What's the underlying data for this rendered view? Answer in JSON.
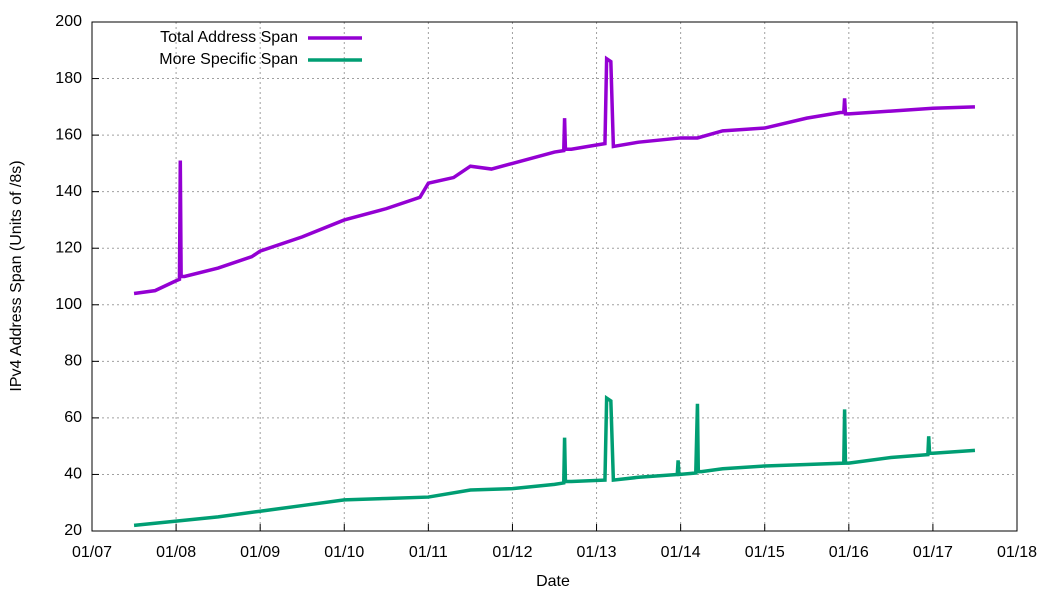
{
  "chart_data": {
    "type": "line",
    "xlabel": "Date",
    "ylabel": "IPv4 Address Span (Units of /8s)",
    "xlim": [
      2007,
      2018
    ],
    "xticks": [
      {
        "value": 2007,
        "label": "01/07"
      },
      {
        "value": 2008,
        "label": "01/08"
      },
      {
        "value": 2009,
        "label": "01/09"
      },
      {
        "value": 2010,
        "label": "01/10"
      },
      {
        "value": 2011,
        "label": "01/11"
      },
      {
        "value": 2012,
        "label": "01/12"
      },
      {
        "value": 2013,
        "label": "01/13"
      },
      {
        "value": 2014,
        "label": "01/14"
      },
      {
        "value": 2015,
        "label": "01/15"
      },
      {
        "value": 2016,
        "label": "01/16"
      },
      {
        "value": 2017,
        "label": "01/17"
      },
      {
        "value": 2018,
        "label": "01/18"
      }
    ],
    "ylim": [
      20,
      200
    ],
    "yticks": [
      20,
      40,
      60,
      80,
      100,
      120,
      140,
      160,
      180,
      200
    ],
    "grid": true,
    "legend": "top-left",
    "series": [
      {
        "name": "Total Address Span",
        "color": "#9400d3",
        "x": [
          2007.5,
          2007.75,
          2008.0,
          2008.04,
          2008.05,
          2008.06,
          2008.1,
          2008.5,
          2008.9,
          2009.0,
          2009.5,
          2010.0,
          2010.5,
          2010.9,
          2011.0,
          2011.3,
          2011.5,
          2011.75,
          2012.0,
          2012.5,
          2012.61,
          2012.62,
          2012.63,
          2012.7,
          2013.0,
          2013.1,
          2013.12,
          2013.17,
          2013.2,
          2013.5,
          2014.0,
          2014.2,
          2014.5,
          2015.0,
          2015.5,
          2015.9,
          2015.94,
          2015.95,
          2015.96,
          2016.0,
          2016.5,
          2017.0,
          2017.5
        ],
        "values": [
          104,
          105,
          108.5,
          109,
          151,
          110,
          110,
          113,
          117,
          119,
          124,
          130,
          134,
          138,
          143,
          145,
          149,
          148,
          150,
          154,
          154.5,
          166,
          155,
          155,
          156.5,
          157,
          187,
          186,
          156,
          157.5,
          159,
          159,
          161.5,
          162.5,
          166,
          168,
          168,
          173,
          167.5,
          167.5,
          168.5,
          169.5,
          170
        ]
      },
      {
        "name": "More Specific Span",
        "color": "#009e73",
        "x": [
          2007.5,
          2008.0,
          2008.5,
          2009.0,
          2009.5,
          2010.0,
          2010.5,
          2011.0,
          2011.5,
          2012.0,
          2012.5,
          2012.61,
          2012.62,
          2012.63,
          2012.7,
          2013.1,
          2013.12,
          2013.17,
          2013.2,
          2013.5,
          2013.96,
          2013.97,
          2013.98,
          2014.18,
          2014.2,
          2014.21,
          2014.25,
          2014.5,
          2015.0,
          2015.5,
          2015.94,
          2015.95,
          2015.96,
          2016.0,
          2016.5,
          2016.94,
          2016.95,
          2016.96,
          2017.0,
          2017.5
        ],
        "values": [
          22,
          23.5,
          25,
          27,
          29,
          31,
          31.5,
          32,
          34.5,
          35,
          36.5,
          37,
          53,
          37.5,
          37.5,
          38,
          67,
          66,
          38,
          39,
          40,
          45,
          40,
          40.5,
          65,
          41,
          41,
          42,
          43,
          43.5,
          44,
          63,
          44,
          44,
          46,
          47,
          53.5,
          47.5,
          47.5,
          48.5
        ]
      }
    ]
  }
}
